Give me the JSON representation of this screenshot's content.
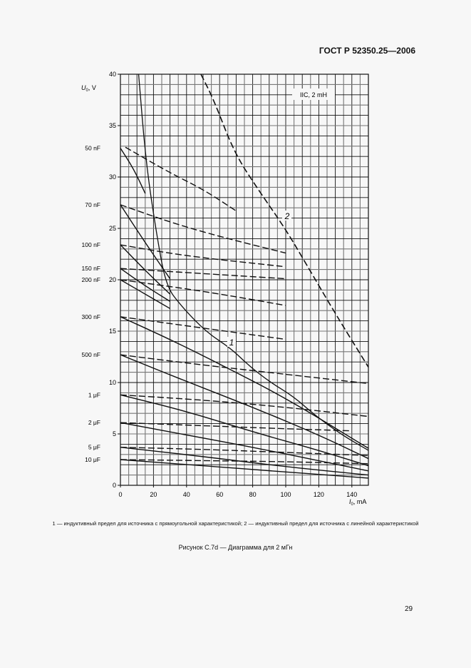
{
  "header": {
    "standard": "ГОСТ Р 52350.25—2006"
  },
  "page_number": "29",
  "legend_note": "1 — индуктивный предел для источника с прямоугольной характеристикой; 2 — индуктивный предел для источника с линейной характеристикой",
  "figure_caption": "Рисунок С.7d — Диаграмма для 2 мГн",
  "chart_data": {
    "type": "line",
    "title": "",
    "box_label": "IIC, 2 mH",
    "xlabel_symbol": "I",
    "xlabel_sub": "0",
    "xlabel_unit": ", mA",
    "ylabel_symbol": "U",
    "ylabel_sub": "0",
    "ylabel_unit": ", V",
    "xlim": [
      0,
      150
    ],
    "ylim": [
      0,
      40
    ],
    "xticks": [
      0,
      20,
      40,
      60,
      80,
      100,
      120,
      140
    ],
    "yticks": [
      0,
      5,
      10,
      15,
      20,
      25,
      30,
      35,
      40
    ],
    "grid": true,
    "grid_minor_x": 5,
    "grid_minor_y": 1,
    "limit_curves": [
      {
        "name": "1",
        "style": "solid",
        "points": [
          [
            11,
            40
          ],
          [
            15.5,
            31.3
          ],
          [
            22,
            24.3
          ],
          [
            27.6,
            19.4
          ],
          [
            37,
            17.4
          ],
          [
            52,
            14.9
          ],
          [
            67,
            13.3
          ],
          [
            78,
            11.6
          ],
          [
            90,
            10.1
          ],
          [
            105,
            8.6
          ],
          [
            117,
            6.9
          ],
          [
            134,
            4.9
          ],
          [
            150,
            3.4
          ]
        ]
      },
      {
        "name": "2",
        "style": "dashed",
        "points": [
          [
            48.7,
            40
          ],
          [
            56.5,
            37.5
          ],
          [
            69,
            32.3
          ],
          [
            84.5,
            28.5
          ],
          [
            99.6,
            25
          ],
          [
            112.5,
            21.5
          ],
          [
            130,
            16.7
          ],
          [
            150,
            11.5
          ]
        ]
      }
    ],
    "capacitance_series": [
      {
        "name": "50 nF",
        "y0": 32.8,
        "solid": [
          [
            0,
            32.8
          ],
          [
            8,
            30.8
          ],
          [
            15,
            28.4
          ]
        ],
        "dashed": [
          [
            3,
            32.9
          ],
          [
            30,
            30.4
          ],
          [
            50,
            28.8
          ],
          [
            70,
            26.7
          ]
        ]
      },
      {
        "name": "70 nF",
        "y0": 27.3,
        "solid": [
          [
            0,
            27.3
          ],
          [
            15,
            23.6
          ],
          [
            30,
            20.1
          ]
        ],
        "dashed": [
          [
            0,
            27.3
          ],
          [
            30,
            25.6
          ],
          [
            60,
            24.2
          ],
          [
            100,
            22.6
          ]
        ]
      },
      {
        "name": "100 nF",
        "y0": 23.4,
        "solid": [
          [
            0,
            23.4
          ],
          [
            15,
            20.9
          ],
          [
            30,
            18.6
          ]
        ],
        "dashed": [
          [
            0,
            23.4
          ],
          [
            40,
            22.3
          ],
          [
            98,
            21.3
          ]
        ]
      },
      {
        "name": "150 nF",
        "y0": 21.1,
        "solid": [
          [
            0,
            21.1
          ],
          [
            15,
            19.4
          ],
          [
            30,
            17.9
          ]
        ],
        "dashed": [
          [
            0,
            21.1
          ],
          [
            50,
            20.6
          ],
          [
            100,
            20.1
          ]
        ]
      },
      {
        "name": "200 nF",
        "y0": 20.0,
        "solid": [
          [
            0,
            20.0
          ],
          [
            15,
            18.6
          ],
          [
            30,
            17.2
          ]
        ],
        "dashed": [
          [
            0,
            20.0
          ],
          [
            50,
            18.9
          ],
          [
            100,
            17.5
          ]
        ]
      },
      {
        "name": "300 nF",
        "y0": 16.4,
        "solid": [
          [
            0,
            16.4
          ],
          [
            30,
            14.2
          ],
          [
            60,
            11.8
          ],
          [
            100,
            8.5
          ],
          [
            150,
            3.6
          ]
        ],
        "dashed": [
          [
            0,
            16.4
          ],
          [
            50,
            15.3
          ],
          [
            100,
            14.2
          ]
        ]
      },
      {
        "name": "500 nF",
        "y0": 12.7,
        "solid": [
          [
            0,
            12.7
          ],
          [
            40,
            10.1
          ],
          [
            80,
            7.6
          ],
          [
            120,
            4.9
          ],
          [
            150,
            2.6
          ]
        ],
        "dashed": [
          [
            0,
            12.7
          ],
          [
            50,
            11.7
          ],
          [
            100,
            10.8
          ],
          [
            150,
            9.9
          ]
        ]
      },
      {
        "name": "1 μF",
        "y0": 8.8,
        "solid": [
          [
            0,
            8.8
          ],
          [
            40,
            7.2
          ],
          [
            80,
            5.2
          ],
          [
            120,
            3.4
          ],
          [
            150,
            1.9
          ]
        ],
        "dashed": [
          [
            0,
            8.8
          ],
          [
            50,
            8.3
          ],
          [
            100,
            7.6
          ],
          [
            150,
            6.7
          ]
        ]
      },
      {
        "name": "2 μF",
        "y0": 6.1,
        "solid": [
          [
            0,
            6.1
          ],
          [
            40,
            4.9
          ],
          [
            80,
            3.7
          ],
          [
            120,
            2.4
          ],
          [
            150,
            1.4
          ]
        ],
        "dashed": [
          [
            0,
            6.1
          ],
          [
            50,
            5.8
          ],
          [
            100,
            5.5
          ],
          [
            140,
            5.3
          ]
        ]
      },
      {
        "name": "5 μF",
        "y0": 3.7,
        "solid": [
          [
            0,
            3.7
          ],
          [
            50,
            2.8
          ],
          [
            100,
            1.8
          ],
          [
            150,
            1.0
          ]
        ],
        "dashed": [
          [
            0,
            3.7
          ],
          [
            50,
            3.5
          ],
          [
            100,
            3.2
          ],
          [
            150,
            2.9
          ]
        ]
      },
      {
        "name": "10 μF",
        "y0": 2.5,
        "solid": [
          [
            0,
            2.5
          ],
          [
            50,
            1.9
          ],
          [
            100,
            1.3
          ],
          [
            150,
            0.7
          ]
        ],
        "dashed": [
          [
            0,
            2.5
          ],
          [
            50,
            2.4
          ],
          [
            100,
            2.3
          ],
          [
            150,
            2.1
          ]
        ]
      }
    ]
  }
}
